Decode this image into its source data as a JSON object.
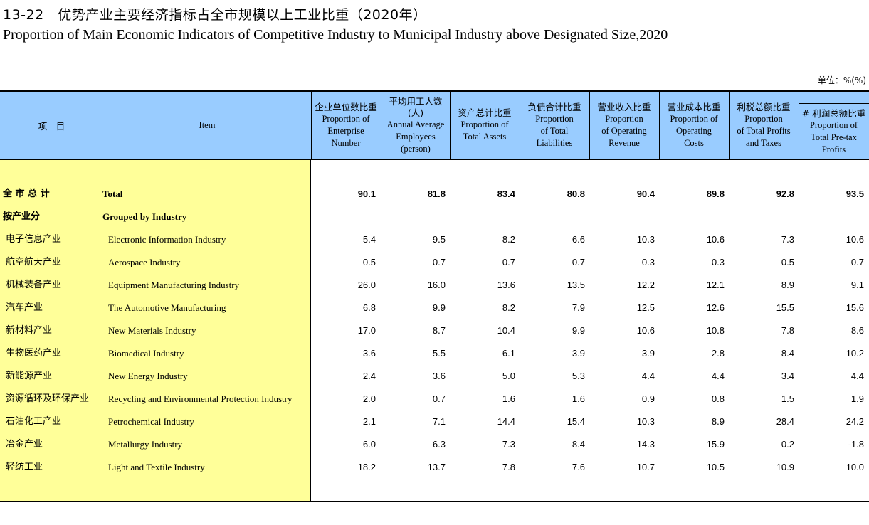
{
  "title_cn": "13-22　优势产业主要经济指标占全市规模以上工业比重（2020年）",
  "title_en": "Proportion of Main Economic Indicators of Competitive Industry to Municipal Industry above Designated Size,2020",
  "unit": "单位：%(%)",
  "header": {
    "item_cn": "项　目",
    "item_en": "Item",
    "columns": [
      {
        "cn": "企业单位数比重",
        "en": [
          "Proportion of",
          "Enterprise",
          "Number"
        ]
      },
      {
        "cn": "平均用工人数\n(人)",
        "en": [
          "Annual Average",
          "Employees",
          "(person)"
        ]
      },
      {
        "cn": "资产总计比重",
        "en": [
          "Proportion of",
          "Total Assets"
        ]
      },
      {
        "cn": "负债合计比重",
        "en": [
          "Proportion",
          "of Total",
          "Liabilities"
        ]
      },
      {
        "cn": "营业收入比重",
        "en": [
          "Proportion",
          "of Operating",
          "Revenue"
        ]
      },
      {
        "cn": "营业成本比重",
        "en": [
          "Proportion of",
          "Operating",
          "Costs"
        ]
      },
      {
        "cn": "利税总额比重",
        "en": [
          "Proportion",
          "of Total Profits",
          "and Taxes"
        ]
      },
      {
        "cn": "# 利润总额比重",
        "en": [
          "Proportion of",
          "Total Pre-tax",
          "Profits"
        ]
      }
    ]
  },
  "rows": [
    {
      "cn": "全 市 总 计",
      "en": "Total",
      "bold": true,
      "values": [
        "90.1",
        "81.8",
        "83.4",
        "80.8",
        "90.4",
        "89.8",
        "92.8",
        "93.5"
      ]
    },
    {
      "cn": "按产业分",
      "en": "Grouped by Industry",
      "bold": true,
      "values": [
        "",
        "",
        "",
        "",
        "",
        "",
        "",
        ""
      ]
    },
    {
      "cn": "电子信息产业",
      "en": "Electronic Information Industry",
      "values": [
        "5.4",
        "9.5",
        "8.2",
        "6.6",
        "10.3",
        "10.6",
        "7.3",
        "10.6"
      ]
    },
    {
      "cn": "航空航天产业",
      "en": "Aerospace Industry",
      "values": [
        "0.5",
        "0.7",
        "0.7",
        "0.7",
        "0.3",
        "0.3",
        "0.5",
        "0.7"
      ]
    },
    {
      "cn": "机械装备产业",
      "en": "Equipment Manufacturing Industry",
      "values": [
        "26.0",
        "16.0",
        "13.6",
        "13.5",
        "12.2",
        "12.1",
        "8.9",
        "9.1"
      ]
    },
    {
      "cn": "汽车产业",
      "en": "The Automotive Manufacturing",
      "values": [
        "6.8",
        "9.9",
        "8.2",
        "7.9",
        "12.5",
        "12.6",
        "15.5",
        "15.6"
      ]
    },
    {
      "cn": "新材料产业",
      "en": "New Materials Industry",
      "values": [
        "17.0",
        "8.7",
        "10.4",
        "9.9",
        "10.6",
        "10.8",
        "7.8",
        "8.6"
      ]
    },
    {
      "cn": "生物医药产业",
      "en": "Biomedical Industry",
      "values": [
        "3.6",
        "5.5",
        "6.1",
        "3.9",
        "3.9",
        "2.8",
        "8.4",
        "10.2"
      ]
    },
    {
      "cn": "新能源产业",
      "en": "New Energy Industry",
      "values": [
        "2.4",
        "3.6",
        "5.0",
        "5.3",
        "4.4",
        "4.4",
        "3.4",
        "4.4"
      ]
    },
    {
      "cn": "资源循环及环保产业",
      "en": "Recycling and Environmental Protection Industry",
      "values": [
        "2.0",
        "0.7",
        "1.6",
        "1.6",
        "0.9",
        "0.8",
        "1.5",
        "1.9"
      ]
    },
    {
      "cn": "石油化工产业",
      "en": "Petrochemical Industry",
      "values": [
        "2.1",
        "7.1",
        "14.4",
        "15.4",
        "10.3",
        "8.9",
        "28.4",
        "24.2"
      ]
    },
    {
      "cn": "冶金产业",
      "en": "Metallurgy Industry",
      "values": [
        "6.0",
        "6.3",
        "7.3",
        "8.4",
        "14.3",
        "15.9",
        "0.2",
        "-1.8"
      ]
    },
    {
      "cn": "轻纺工业",
      "en": "Light and Textile Industry",
      "values": [
        "18.2",
        "13.7",
        "7.8",
        "7.6",
        "10.7",
        "10.5",
        "10.9",
        "10.0"
      ]
    }
  ]
}
